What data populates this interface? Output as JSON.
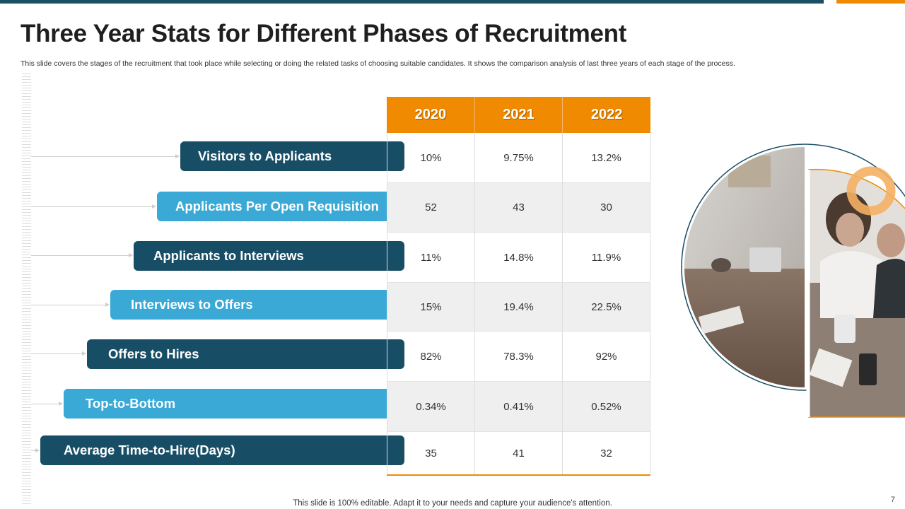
{
  "slide": {
    "title": "Three Year Stats for Different Phases of Recruitment",
    "subtitle": "This slide covers the stages of the recruitment that took place while selecting or doing the related tasks of choosing suitable candidates. It shows the comparison analysis of last three years of each stage of the process.",
    "footer": "This slide is 100% editable. Adapt it to your needs and capture your audience's attention.",
    "page_number": "7"
  },
  "colors": {
    "dark": "#174e66",
    "light": "#3aa9d6",
    "accent": "#f08a00"
  },
  "table": {
    "years": [
      "2020",
      "2021",
      "2022"
    ],
    "rows": [
      {
        "label": "Visitors to Applicants",
        "values": [
          "10%",
          "9.75%",
          "13.2%"
        ]
      },
      {
        "label": "Applicants Per Open Requisition",
        "values": [
          "52",
          "43",
          "30"
        ]
      },
      {
        "label": "Applicants to Interviews",
        "values": [
          "11%",
          "14.8%",
          "11.9%"
        ]
      },
      {
        "label": "Interviews to Offers",
        "values": [
          "15%",
          "19.4%",
          "22.5%"
        ]
      },
      {
        "label": "Offers to Hires",
        "values": [
          "82%",
          "78.3%",
          "92%"
        ]
      },
      {
        "label": "Top-to-Bottom",
        "values": [
          "0.34%",
          "0.41%",
          "0.52%"
        ]
      },
      {
        "label": "Average Time-to-Hire(Days)",
        "values": [
          "35",
          "41",
          "32"
        ]
      }
    ]
  }
}
